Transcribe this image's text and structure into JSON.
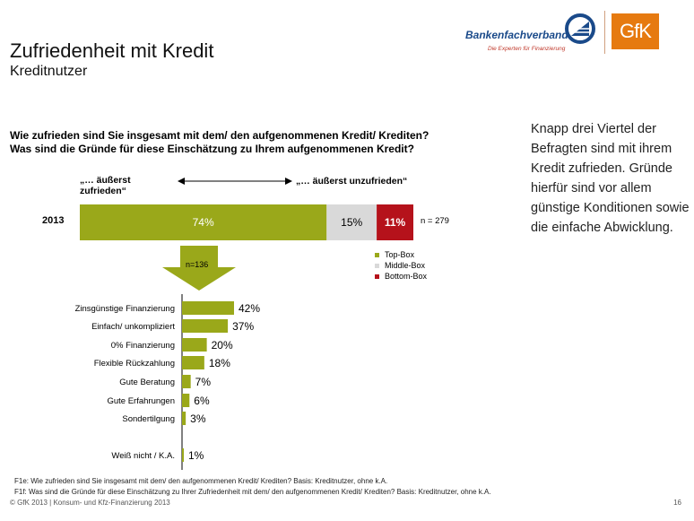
{
  "header": {
    "title": "Zufriedenheit mit Kredit",
    "subtitle": "Kreditnutzer",
    "logo_bank": "Bankenfachverband",
    "logo_bank_tagline": "Die Experten für Finanzierung",
    "logo_gfk": "GfK"
  },
  "question": {
    "line1": "Wie zufrieden sind Sie insgesamt mit dem/ den aufgenommenen Kredit/ Krediten?",
    "line2": "Was sind die Gründe für diese Einschätzung zu Ihrem aufgenommenen Kredit?"
  },
  "side_note": "Knapp drei Viertel der Befragten sind mit ihrem Kredit zufrieden. Gründe hierfür sind vor allem günstige Konditionen sowie die einfache Abwicklung.",
  "scale": {
    "left": "„… äußerst zufrieden“",
    "right": "„… äußerst unzufrieden“"
  },
  "colors": {
    "top_box": "#9aa81a",
    "middle_box": "#d9d9d9",
    "bottom_box": "#b5121b",
    "reason_bar": "#9aa81a"
  },
  "chart_data": [
    {
      "type": "bar",
      "orientation": "horizontal",
      "stacked": true,
      "categories": [
        "2013"
      ],
      "series": [
        {
          "name": "Top-Box",
          "values": [
            74
          ],
          "label": "74%"
        },
        {
          "name": "Middle-Box",
          "values": [
            15
          ],
          "label": "15%"
        },
        {
          "name": "Bottom-Box",
          "values": [
            11
          ],
          "label": "11%"
        }
      ],
      "n_label": "n = 279",
      "legend_position": "bottom-right"
    },
    {
      "type": "bar",
      "orientation": "horizontal",
      "n_label": "n=136",
      "categories": [
        "Zinsgünstige Finanzierung",
        "Einfach/ unkompliziert",
        "0% Finanzierung",
        "Flexible Rückzahlung",
        "Gute Beratung",
        "Gute Erfahrungen",
        "Sondertilgung",
        "Weiß nicht / K.A."
      ],
      "values": [
        42,
        37,
        20,
        18,
        7,
        6,
        3,
        1
      ],
      "labels": [
        "42%",
        "37%",
        "20%",
        "18%",
        "7%",
        "6%",
        "3%",
        "1%"
      ]
    }
  ],
  "footnotes": [
    "F1e: Wie zufrieden sind Sie insgesamt mit dem/ den aufgenommenen Kredit/ Krediten? Basis: Kreditnutzer, ohne k.A.",
    "F1f: Was sind die Gründe für diese Einschätzung zu Ihrer Zufriedenheit mit dem/ den aufgenommenen Kredit/ Krediten? Basis: Kreditnutzer, ohne k.A.",
    "© GfK 2013 | Konsum- und Kfz-Finanzierung 2013"
  ],
  "page_number": "16"
}
